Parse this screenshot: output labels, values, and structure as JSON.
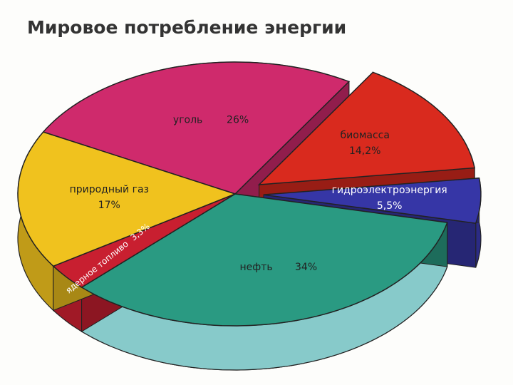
{
  "chart_data": {
    "type": "pie",
    "title": "Мировое потребление энергии",
    "categories": [
      "уголь",
      "биомасса",
      "гидроэлектроэнергия",
      "нефть",
      "ядерное топливо",
      "природный газ"
    ],
    "values": [
      26,
      14.2,
      5.5,
      34,
      3.3,
      17
    ],
    "value_labels": [
      "26%",
      "14,2%",
      "5,5%",
      "34%",
      "3,3%",
      "17%"
    ],
    "colors": [
      "#cf2a6c",
      "#d92a1e",
      "#3636a6",
      "#2a9a82",
      "#c81f30",
      "#f0c21e"
    ]
  }
}
